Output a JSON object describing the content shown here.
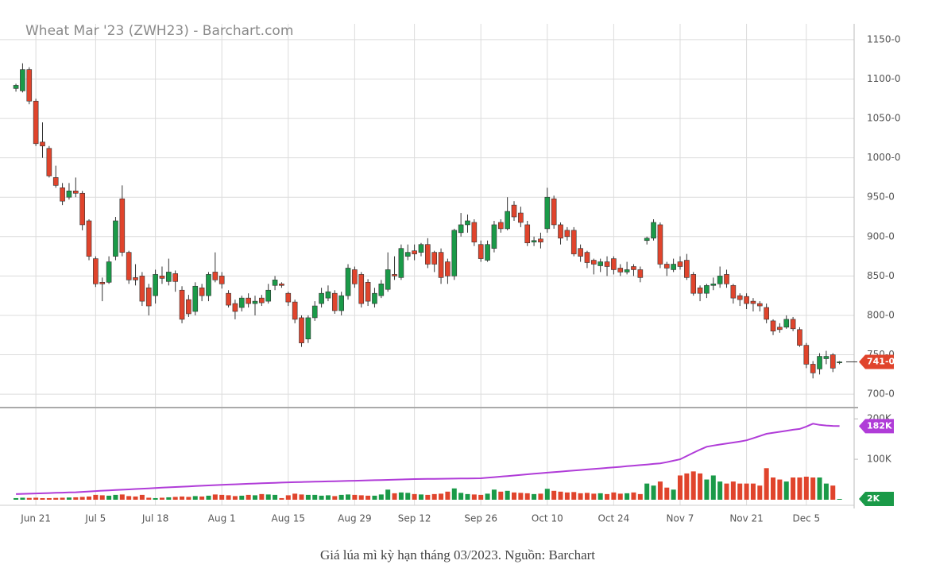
{
  "chart_data": [
    {
      "type": "candlestick",
      "title": "Wheat Mar '23 (ZWH23) - Barchart.com",
      "up_color": "#1a9a48",
      "down_color": "#e0442c",
      "open": [
        1088,
        1085,
        1112,
        1072,
        1020,
        1012,
        975,
        962,
        950,
        958,
        955,
        920,
        872,
        842,
        842,
        875,
        948,
        880,
        848,
        850,
        835,
        825,
        850,
        843,
        853,
        832,
        820,
        805,
        835,
        825,
        855,
        850,
        828,
        815,
        810,
        822,
        815,
        822,
        818,
        838,
        840,
        828,
        817,
        797,
        770,
        797,
        815,
        822,
        828,
        806,
        825,
        858,
        852,
        842,
        815,
        825,
        833,
        852,
        848,
        875,
        882,
        880,
        890,
        880,
        880,
        868,
        850,
        905,
        915,
        918,
        890,
        870,
        885,
        918,
        910,
        940,
        930,
        915,
        893,
        897,
        910,
        948,
        915,
        908,
        908,
        885,
        880,
        870,
        863,
        868,
        872,
        860,
        855,
        862,
        858,
        895,
        898,
        915,
        865,
        858,
        868,
        870,
        852,
        835,
        828,
        838,
        840,
        852,
        838,
        825,
        824,
        818,
        815,
        810,
        793,
        785,
        785,
        795,
        782,
        762,
        738,
        732,
        745,
        750,
        741
      ],
      "high": [
        1094,
        1120,
        1115,
        1075,
        1045,
        1015,
        990,
        968,
        968,
        975,
        958,
        922,
        875,
        848,
        875,
        925,
        965,
        882,
        865,
        855,
        840,
        858,
        862,
        872,
        857,
        837,
        826,
        842,
        840,
        855,
        880,
        855,
        832,
        820,
        825,
        828,
        825,
        826,
        840,
        850,
        842,
        830,
        820,
        800,
        800,
        818,
        835,
        838,
        832,
        830,
        865,
        862,
        855,
        846,
        835,
        845,
        880,
        875,
        890,
        890,
        890,
        892,
        898,
        882,
        885,
        872,
        910,
        930,
        928,
        922,
        895,
        895,
        920,
        922,
        950,
        945,
        938,
        920,
        900,
        905,
        962,
        952,
        918,
        912,
        912,
        890,
        882,
        872,
        872,
        875,
        875,
        865,
        868,
        865,
        862,
        900,
        922,
        918,
        868,
        872,
        875,
        878,
        855,
        838,
        840,
        848,
        862,
        858,
        840,
        828,
        828,
        822,
        818,
        815,
        795,
        790,
        800,
        798,
        785,
        765,
        742,
        752,
        755,
        752,
        742
      ],
      "low": [
        1084,
        1083,
        1068,
        1015,
        1000,
        975,
        962,
        940,
        947,
        950,
        908,
        870,
        836,
        818,
        840,
        870,
        875,
        840,
        838,
        812,
        800,
        815,
        840,
        838,
        830,
        790,
        798,
        800,
        818,
        818,
        842,
        834,
        810,
        795,
        805,
        810,
        800,
        812,
        815,
        832,
        835,
        812,
        790,
        760,
        765,
        793,
        810,
        818,
        802,
        800,
        820,
        835,
        810,
        812,
        810,
        822,
        830,
        845,
        845,
        870,
        870,
        875,
        860,
        855,
        840,
        840,
        845,
        900,
        905,
        888,
        868,
        868,
        880,
        905,
        908,
        920,
        912,
        888,
        888,
        885,
        905,
        910,
        890,
        895,
        875,
        868,
        860,
        852,
        855,
        850,
        852,
        850,
        852,
        850,
        842,
        890,
        895,
        860,
        850,
        855,
        858,
        845,
        825,
        818,
        822,
        832,
        835,
        835,
        815,
        812,
        808,
        805,
        805,
        790,
        775,
        778,
        783,
        780,
        760,
        733,
        720,
        725,
        738,
        728,
        738
      ],
      "close": [
        1092,
        1112,
        1072,
        1018,
        1015,
        977,
        965,
        945,
        958,
        955,
        915,
        875,
        840,
        840,
        868,
        920,
        880,
        845,
        845,
        818,
        812,
        852,
        847,
        855,
        843,
        795,
        802,
        837,
        825,
        852,
        845,
        840,
        813,
        805,
        822,
        815,
        818,
        816,
        832,
        845,
        838,
        817,
        795,
        765,
        797,
        812,
        828,
        830,
        806,
        825,
        860,
        840,
        815,
        818,
        828,
        840,
        858,
        850,
        885,
        880,
        878,
        890,
        865,
        865,
        848,
        850,
        908,
        915,
        920,
        893,
        872,
        890,
        915,
        910,
        932,
        925,
        918,
        892,
        895,
        893,
        950,
        915,
        898,
        900,
        878,
        875,
        867,
        865,
        868,
        862,
        858,
        855,
        858,
        858,
        848,
        898,
        918,
        865,
        860,
        865,
        862,
        848,
        828,
        828,
        838,
        840,
        850,
        840,
        822,
        820,
        815,
        815,
        812,
        795,
        780,
        782,
        795,
        783,
        762,
        738,
        727,
        748,
        748,
        733,
        741
      ],
      "last_value": {
        "value": 741,
        "label": "741-0"
      },
      "xlim": [
        -2.4,
        126.2
      ],
      "xticks": [
        {
          "value": 3,
          "label": "Jun 21"
        },
        {
          "value": 12,
          "label": "Jul 5"
        },
        {
          "value": 21,
          "label": "Jul 18"
        },
        {
          "value": 31,
          "label": "Aug 1"
        },
        {
          "value": 41,
          "label": "Aug 15"
        },
        {
          "value": 51,
          "label": "Aug 29"
        },
        {
          "value": 60,
          "label": "Sep 12"
        },
        {
          "value": 70,
          "label": "Sep 26"
        },
        {
          "value": 80,
          "label": "Oct 10"
        },
        {
          "value": 90,
          "label": "Oct 24"
        },
        {
          "value": 100,
          "label": "Nov 7"
        },
        {
          "value": 110,
          "label": "Nov 21"
        },
        {
          "value": 119,
          "label": "Dec 5"
        }
      ],
      "ylim": [
        686,
        1160
      ],
      "yticks": [
        {
          "value": 700,
          "label": "700-0"
        },
        {
          "value": 750,
          "label": "750-0"
        },
        {
          "value": 800,
          "label": "800-0"
        },
        {
          "value": 850,
          "label": "850-0"
        },
        {
          "value": 900,
          "label": "900-0"
        },
        {
          "value": 950,
          "label": "950-0"
        },
        {
          "value": 1000,
          "label": "1000-0"
        },
        {
          "value": 1050,
          "label": "1050-0"
        },
        {
          "value": 1100,
          "label": "1100-0"
        },
        {
          "value": 1150,
          "label": "1150-0"
        }
      ],
      "grid": true
    },
    {
      "type": "volume",
      "volume": [
        4000,
        5000,
        4500,
        5000,
        4000,
        4000,
        4500,
        5000,
        5500,
        6000,
        7000,
        8000,
        12000,
        11000,
        10000,
        12000,
        13000,
        9000,
        8000,
        12000,
        5000,
        4000,
        5000,
        6000,
        7000,
        8000,
        7000,
        9000,
        8000,
        10000,
        13000,
        12000,
        11000,
        9000,
        10000,
        12000,
        11000,
        14000,
        13000,
        12000,
        4000,
        11000,
        15000,
        13000,
        12000,
        12000,
        10000,
        11000,
        9000,
        12000,
        13000,
        12000,
        11000,
        10000,
        10000,
        13000,
        25000,
        16000,
        18000,
        17000,
        14000,
        13000,
        12000,
        14000,
        15000,
        20000,
        28000,
        17000,
        14000,
        13000,
        12000,
        15000,
        25000,
        20000,
        22000,
        18000,
        17000,
        16000,
        14000,
        15000,
        27000,
        22000,
        20000,
        18000,
        19000,
        16000,
        17000,
        15000,
        16000,
        14000,
        18000,
        15000,
        16000,
        18000,
        14000,
        40000,
        35000,
        45000,
        30000,
        25000,
        60000,
        65000,
        70000,
        65000,
        50000,
        60000,
        45000,
        40000,
        45000,
        40000,
        40000,
        40000,
        35000,
        78000,
        55000,
        50000,
        45000,
        55000,
        55000,
        57000,
        55000,
        55000,
        40000,
        35000,
        2000
      ],
      "open_interest": [
        14000,
        14500,
        15000,
        15500,
        16000,
        16500,
        17000,
        17500,
        18000,
        18500,
        19500,
        20500,
        21500,
        22300,
        23100,
        24000,
        24800,
        25600,
        26500,
        27300,
        28100,
        29000,
        29800,
        30600,
        31400,
        32200,
        33000,
        33800,
        34600,
        35400,
        36200,
        37000,
        37600,
        38200,
        38800,
        39400,
        40000,
        40600,
        41200,
        41800,
        42400,
        43000,
        43400,
        43800,
        44200,
        44600,
        45000,
        45400,
        45800,
        46200,
        46600,
        47000,
        47400,
        47900,
        48300,
        48800,
        49200,
        49700,
        50100,
        50600,
        51000,
        51200,
        51400,
        51600,
        51800,
        52000,
        52200,
        52400,
        52600,
        52800,
        53000,
        54400,
        55800,
        57200,
        58600,
        60000,
        61400,
        62800,
        64200,
        65600,
        67000,
        68300,
        69600,
        70900,
        72200,
        73500,
        74800,
        76100,
        77400,
        78700,
        80000,
        81400,
        82900,
        84300,
        85700,
        87100,
        88600,
        90000,
        93000,
        96500,
        100000,
        108000,
        116000,
        124000,
        131000,
        134000,
        136500,
        139000,
        141500,
        144000,
        147000,
        152000,
        157500,
        163000,
        165500,
        168000,
        170500,
        173000,
        175000,
        181000,
        188000,
        185000,
        183500,
        182500,
        182000
      ],
      "oi_color": "#b03cd8",
      "last_volume": {
        "value": 2000,
        "label": "2K"
      },
      "last_open_interest": {
        "value": 182000,
        "label": "182K"
      },
      "ylim": [
        0,
        220000
      ],
      "yticks": [
        {
          "value": 100000,
          "label": "100K"
        },
        {
          "value": 200000,
          "label": "200K"
        }
      ]
    }
  ],
  "caption": "Giá lúa mì kỳ hạn tháng 03/2023. Nguồn: Barchart"
}
